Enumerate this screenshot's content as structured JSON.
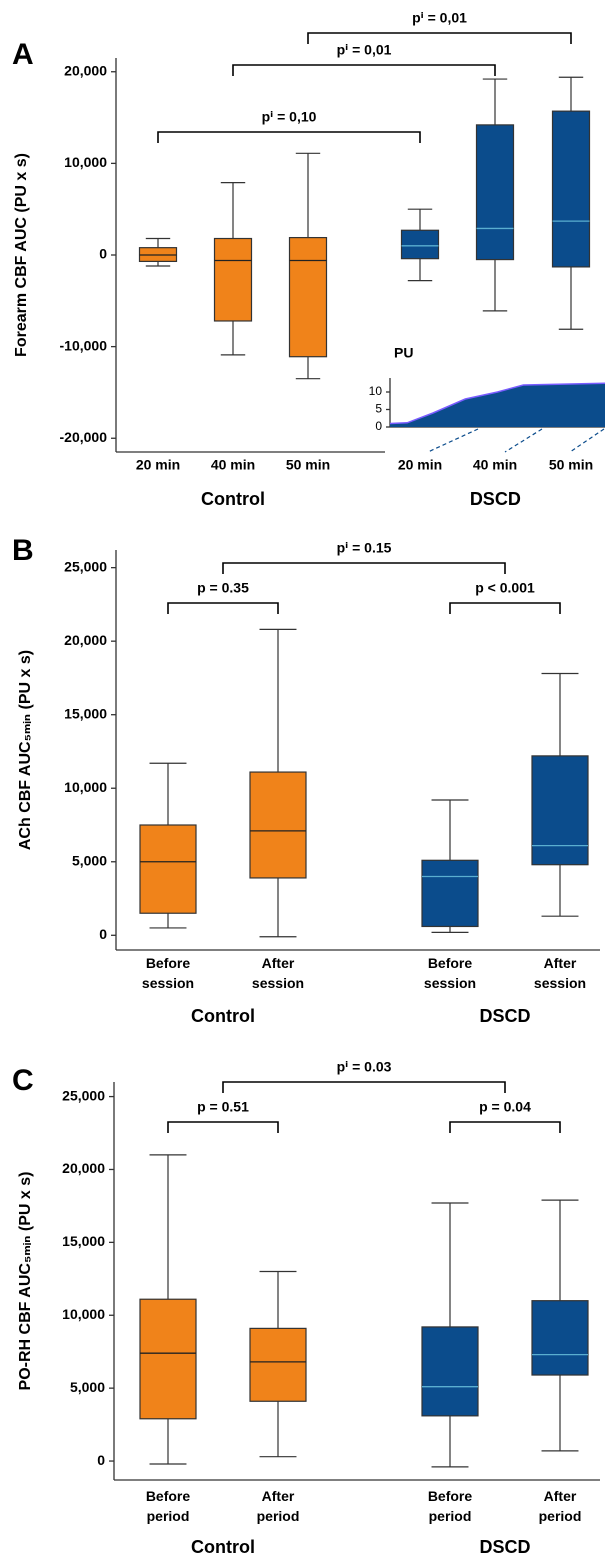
{
  "chart_data": [
    {
      "type": "box",
      "panel": "A",
      "ylabel": "Forearm CBF AUC (PU x s)",
      "ylim": [
        -21500,
        21500
      ],
      "yticks": [
        {
          "value": -20000,
          "label": "-20,000"
        },
        {
          "value": -10000,
          "label": "-10,000"
        },
        0,
        {
          "value": 10000,
          "label": "10,000"
        },
        {
          "value": 20000,
          "label": "20,000"
        }
      ],
      "series": [
        {
          "name": "Control",
          "color": "#f0831a",
          "median_color": "#222222",
          "categories": [
            "20 min",
            "40 min",
            "50 min"
          ],
          "whislo": [
            -1200,
            -10900,
            -13500
          ],
          "q1": [
            -700,
            -7200,
            -11100
          ],
          "median": [
            0,
            -600,
            -600
          ],
          "q3": [
            800,
            1800,
            1900
          ],
          "whishi": [
            1800,
            7900,
            11100
          ]
        },
        {
          "name": "DSCD",
          "color": "#0b4c8c",
          "median_color": "#5aaed0",
          "categories": [
            "20 min",
            "40 min",
            "50 min"
          ],
          "whislo": [
            -2800,
            -6100,
            -8100
          ],
          "q1": [
            -400,
            -500,
            -1300
          ],
          "median": [
            1000,
            2900,
            3700
          ],
          "q3": [
            2700,
            14200,
            15700
          ],
          "whishi": [
            5000,
            19200,
            19400
          ]
        }
      ],
      "comparisons": [
        {
          "label": "pⁱ = 0,10",
          "color": "#000000",
          "between": [
            [
              0,
              0
            ],
            [
              1,
              0
            ]
          ]
        },
        {
          "label": "pⁱ = 0,01",
          "color": "#000000",
          "between": [
            [
              0,
              1
            ],
            [
              1,
              1
            ]
          ]
        },
        {
          "label": "pⁱ = 0,01",
          "color": "#000000",
          "between": [
            [
              0,
              2
            ],
            [
              1,
              2
            ]
          ]
        }
      ],
      "inset": {
        "type": "area",
        "ylabel": "PU",
        "x": [
          0,
          8,
          20,
          35,
          50,
          62,
          100
        ],
        "values": [
          1,
          1.2,
          4,
          8,
          10,
          12,
          12.5
        ],
        "xlim": [
          0,
          100
        ],
        "ylim": [
          0,
          14
        ],
        "yticks": [
          0,
          5,
          10
        ],
        "color": "#0b4c8c",
        "line_color": "#7a5cff"
      }
    },
    {
      "type": "box",
      "panel": "B",
      "ylabel": "ACh CBF AUC₅ₘᵢₙ (PU x s)",
      "ylim": [
        -1000,
        26200
      ],
      "yticks": [
        0,
        {
          "value": 5000,
          "label": "5,000"
        },
        {
          "value": 10000,
          "label": "10,000"
        },
        {
          "value": 15000,
          "label": "15,000"
        },
        {
          "value": 20000,
          "label": "20,000"
        },
        {
          "value": 25000,
          "label": "25,000"
        }
      ],
      "series": [
        {
          "name": "Control",
          "color": "#f0831a",
          "median_color": "#222222",
          "categories": [
            "Before session",
            "After session"
          ],
          "whislo": [
            500,
            -100
          ],
          "q1": [
            1500,
            3900
          ],
          "median": [
            5000,
            7100
          ],
          "q3": [
            7500,
            11100
          ],
          "whishi": [
            11700,
            20800
          ]
        },
        {
          "name": "DSCD",
          "color": "#0b4c8c",
          "median_color": "#5aaed0",
          "categories": [
            "Before session",
            "After session"
          ],
          "whislo": [
            200,
            1300
          ],
          "q1": [
            600,
            4800
          ],
          "median": [
            4000,
            6100
          ],
          "q3": [
            5100,
            12200
          ],
          "whishi": [
            9200,
            17800
          ]
        }
      ],
      "comparisons": [
        {
          "label": "p = 0.35",
          "color": "#f0831a",
          "between": [
            [
              0,
              0
            ],
            [
              0,
              1
            ]
          ]
        },
        {
          "label": "p < 0.001",
          "color": "#0b4c8c",
          "between": [
            [
              1,
              0
            ],
            [
              1,
              1
            ]
          ]
        },
        {
          "label": "pⁱ = 0.15",
          "color": "#000000",
          "between": [
            [
              0
            ],
            [
              1
            ]
          ]
        }
      ]
    },
    {
      "type": "box",
      "panel": "C",
      "ylabel": "PO-RH CBF AUC₅ₘᵢₙ (PU x s)",
      "ylim": [
        -1300,
        26000
      ],
      "yticks": [
        0,
        {
          "value": 5000,
          "label": "5,000"
        },
        {
          "value": 10000,
          "label": "10,000"
        },
        {
          "value": 15000,
          "label": "15,000"
        },
        {
          "value": 20000,
          "label": "20,000"
        },
        {
          "value": 25000,
          "label": "25,000"
        }
      ],
      "series": [
        {
          "name": "Control",
          "color": "#f0831a",
          "median_color": "#222222",
          "categories": [
            "Before period",
            "After period"
          ],
          "whislo": [
            -200,
            300
          ],
          "q1": [
            2900,
            4100
          ],
          "median": [
            7400,
            6800
          ],
          "q3": [
            11100,
            9100
          ],
          "whishi": [
            21000,
            13000
          ]
        },
        {
          "name": "DSCD",
          "color": "#0b4c8c",
          "median_color": "#5aaed0",
          "categories": [
            "Before period",
            "After period"
          ],
          "whislo": [
            -400,
            700
          ],
          "q1": [
            3100,
            5900
          ],
          "median": [
            5100,
            7300
          ],
          "q3": [
            9200,
            11000
          ],
          "whishi": [
            17700,
            17900
          ]
        }
      ],
      "comparisons": [
        {
          "label": "p = 0.51",
          "color": "#f0831a",
          "between": [
            [
              0,
              0
            ],
            [
              0,
              1
            ]
          ]
        },
        {
          "label": "p = 0.04",
          "color": "#0b4c8c",
          "between": [
            [
              1,
              0
            ],
            [
              1,
              1
            ]
          ]
        },
        {
          "label": "pⁱ = 0.03",
          "color": "#000000",
          "between": [
            [
              0
            ],
            [
              1
            ]
          ]
        }
      ]
    }
  ]
}
